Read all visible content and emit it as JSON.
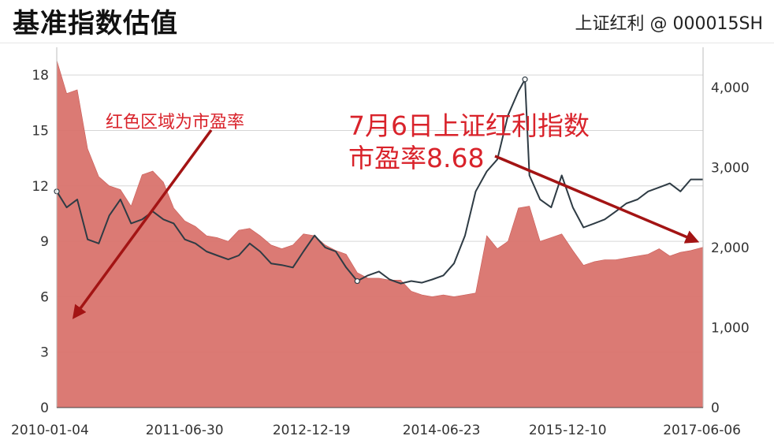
{
  "header": {
    "title": "基准指数估值",
    "subtitle": "上证红利 @ 000015SH"
  },
  "colors": {
    "pe_area": "#d9736d",
    "index_line": "#2e3b44",
    "annotation": "#d9232b",
    "arrow": "#a31414",
    "grid": "#d6d6d6"
  },
  "annotations": {
    "left_note": "红色区域为市盈率",
    "right_note_line1": "7月6日上证红利指数",
    "right_note_line2": "市盈率8.68"
  },
  "chart_data": {
    "type": "area",
    "x_tick_labels": [
      "2010-01-04",
      "2011-06-30",
      "2012-12-19",
      "2014-06-23",
      "2015-12-10",
      "2017-06-06"
    ],
    "x_range": [
      "2010-01-04",
      "2017-07-06"
    ],
    "y_left": {
      "ylim": [
        0,
        19.5
      ],
      "ticks": [
        0,
        3,
        6,
        9,
        12,
        15,
        18
      ]
    },
    "y_right": {
      "ylim": [
        0,
        4500
      ],
      "ticks": [
        0,
        1000,
        2000,
        3000,
        4000
      ],
      "tick_labels": [
        "0",
        "1,000",
        "2,000",
        "3,000",
        "4,000"
      ]
    },
    "grid": true,
    "series": [
      {
        "axis": "left",
        "style": "area",
        "x": [
          "2010-01-04",
          "2010-02-15",
          "2010-04-01",
          "2010-05-15",
          "2010-07-01",
          "2010-08-15",
          "2010-10-01",
          "2010-11-15",
          "2011-01-01",
          "2011-02-15",
          "2011-04-01",
          "2011-05-15",
          "2011-07-01",
          "2011-08-15",
          "2011-10-01",
          "2011-11-15",
          "2012-01-01",
          "2012-02-15",
          "2012-04-01",
          "2012-05-15",
          "2012-07-01",
          "2012-08-15",
          "2012-10-01",
          "2012-11-15",
          "2013-01-01",
          "2013-02-15",
          "2013-04-01",
          "2013-05-15",
          "2013-07-01",
          "2013-08-15",
          "2013-10-01",
          "2013-11-15",
          "2014-01-01",
          "2014-02-15",
          "2014-04-01",
          "2014-05-15",
          "2014-07-01",
          "2014-08-15",
          "2014-10-01",
          "2014-11-15",
          "2015-01-01",
          "2015-02-15",
          "2015-04-01",
          "2015-05-15",
          "2015-07-01",
          "2015-08-15",
          "2015-10-01",
          "2015-11-15",
          "2016-01-01",
          "2016-02-15",
          "2016-04-01",
          "2016-05-15",
          "2016-07-01",
          "2016-08-15",
          "2016-10-01",
          "2016-11-15",
          "2017-01-01",
          "2017-02-15",
          "2017-04-01",
          "2017-05-15",
          "2017-07-06"
        ],
        "values": [
          18.8,
          17.0,
          17.2,
          14.0,
          12.5,
          12.0,
          11.8,
          10.9,
          12.6,
          12.8,
          12.2,
          10.8,
          10.1,
          9.8,
          9.3,
          9.2,
          9.0,
          9.6,
          9.7,
          9.3,
          8.8,
          8.6,
          8.8,
          9.4,
          9.3,
          8.8,
          8.5,
          8.3,
          7.3,
          7.0,
          7.0,
          6.9,
          6.9,
          6.3,
          6.1,
          6.0,
          6.1,
          6.0,
          6.1,
          6.2,
          9.3,
          8.6,
          9.0,
          10.8,
          10.9,
          9.0,
          9.2,
          9.4,
          8.5,
          7.7,
          7.9,
          8.0,
          8.0,
          8.1,
          8.2,
          8.3,
          8.6,
          8.2,
          8.4,
          8.5,
          8.68
        ]
      },
      {
        "axis": "right",
        "style": "line",
        "x": [
          "2010-01-04",
          "2010-02-15",
          "2010-04-01",
          "2010-05-15",
          "2010-07-01",
          "2010-08-15",
          "2010-10-01",
          "2010-11-15",
          "2011-01-01",
          "2011-02-15",
          "2011-04-01",
          "2011-05-15",
          "2011-07-01",
          "2011-08-15",
          "2011-10-01",
          "2011-11-15",
          "2012-01-01",
          "2012-02-15",
          "2012-04-01",
          "2012-05-15",
          "2012-07-01",
          "2012-08-15",
          "2012-10-01",
          "2012-11-15",
          "2013-01-01",
          "2013-02-15",
          "2013-04-01",
          "2013-05-15",
          "2013-07-01",
          "2013-08-15",
          "2013-10-01",
          "2013-11-15",
          "2014-01-01",
          "2014-02-15",
          "2014-04-01",
          "2014-05-15",
          "2014-07-01",
          "2014-08-15",
          "2014-10-01",
          "2014-11-15",
          "2015-01-01",
          "2015-02-15",
          "2015-04-01",
          "2015-05-15",
          "2015-06-12",
          "2015-07-01",
          "2015-08-15",
          "2015-10-01",
          "2015-11-15",
          "2016-01-01",
          "2016-02-15",
          "2016-04-01",
          "2016-05-15",
          "2016-07-01",
          "2016-08-15",
          "2016-10-01",
          "2016-11-15",
          "2017-01-01",
          "2017-02-15",
          "2017-04-01",
          "2017-05-15",
          "2017-07-06"
        ],
        "values": [
          2700,
          2500,
          2600,
          2100,
          2050,
          2400,
          2600,
          2300,
          2350,
          2450,
          2350,
          2300,
          2100,
          2050,
          1950,
          1900,
          1850,
          1900,
          2050,
          1950,
          1800,
          1780,
          1750,
          1950,
          2150,
          2000,
          1950,
          1750,
          1580,
          1650,
          1700,
          1600,
          1550,
          1580,
          1560,
          1600,
          1650,
          1800,
          2150,
          2700,
          2950,
          3100,
          3650,
          3950,
          4100,
          2900,
          2600,
          2500,
          2900,
          2500,
          2250,
          2300,
          2350,
          2450,
          2550,
          2600,
          2700,
          2750,
          2800,
          2700,
          2850,
          2850
        ]
      }
    ]
  }
}
